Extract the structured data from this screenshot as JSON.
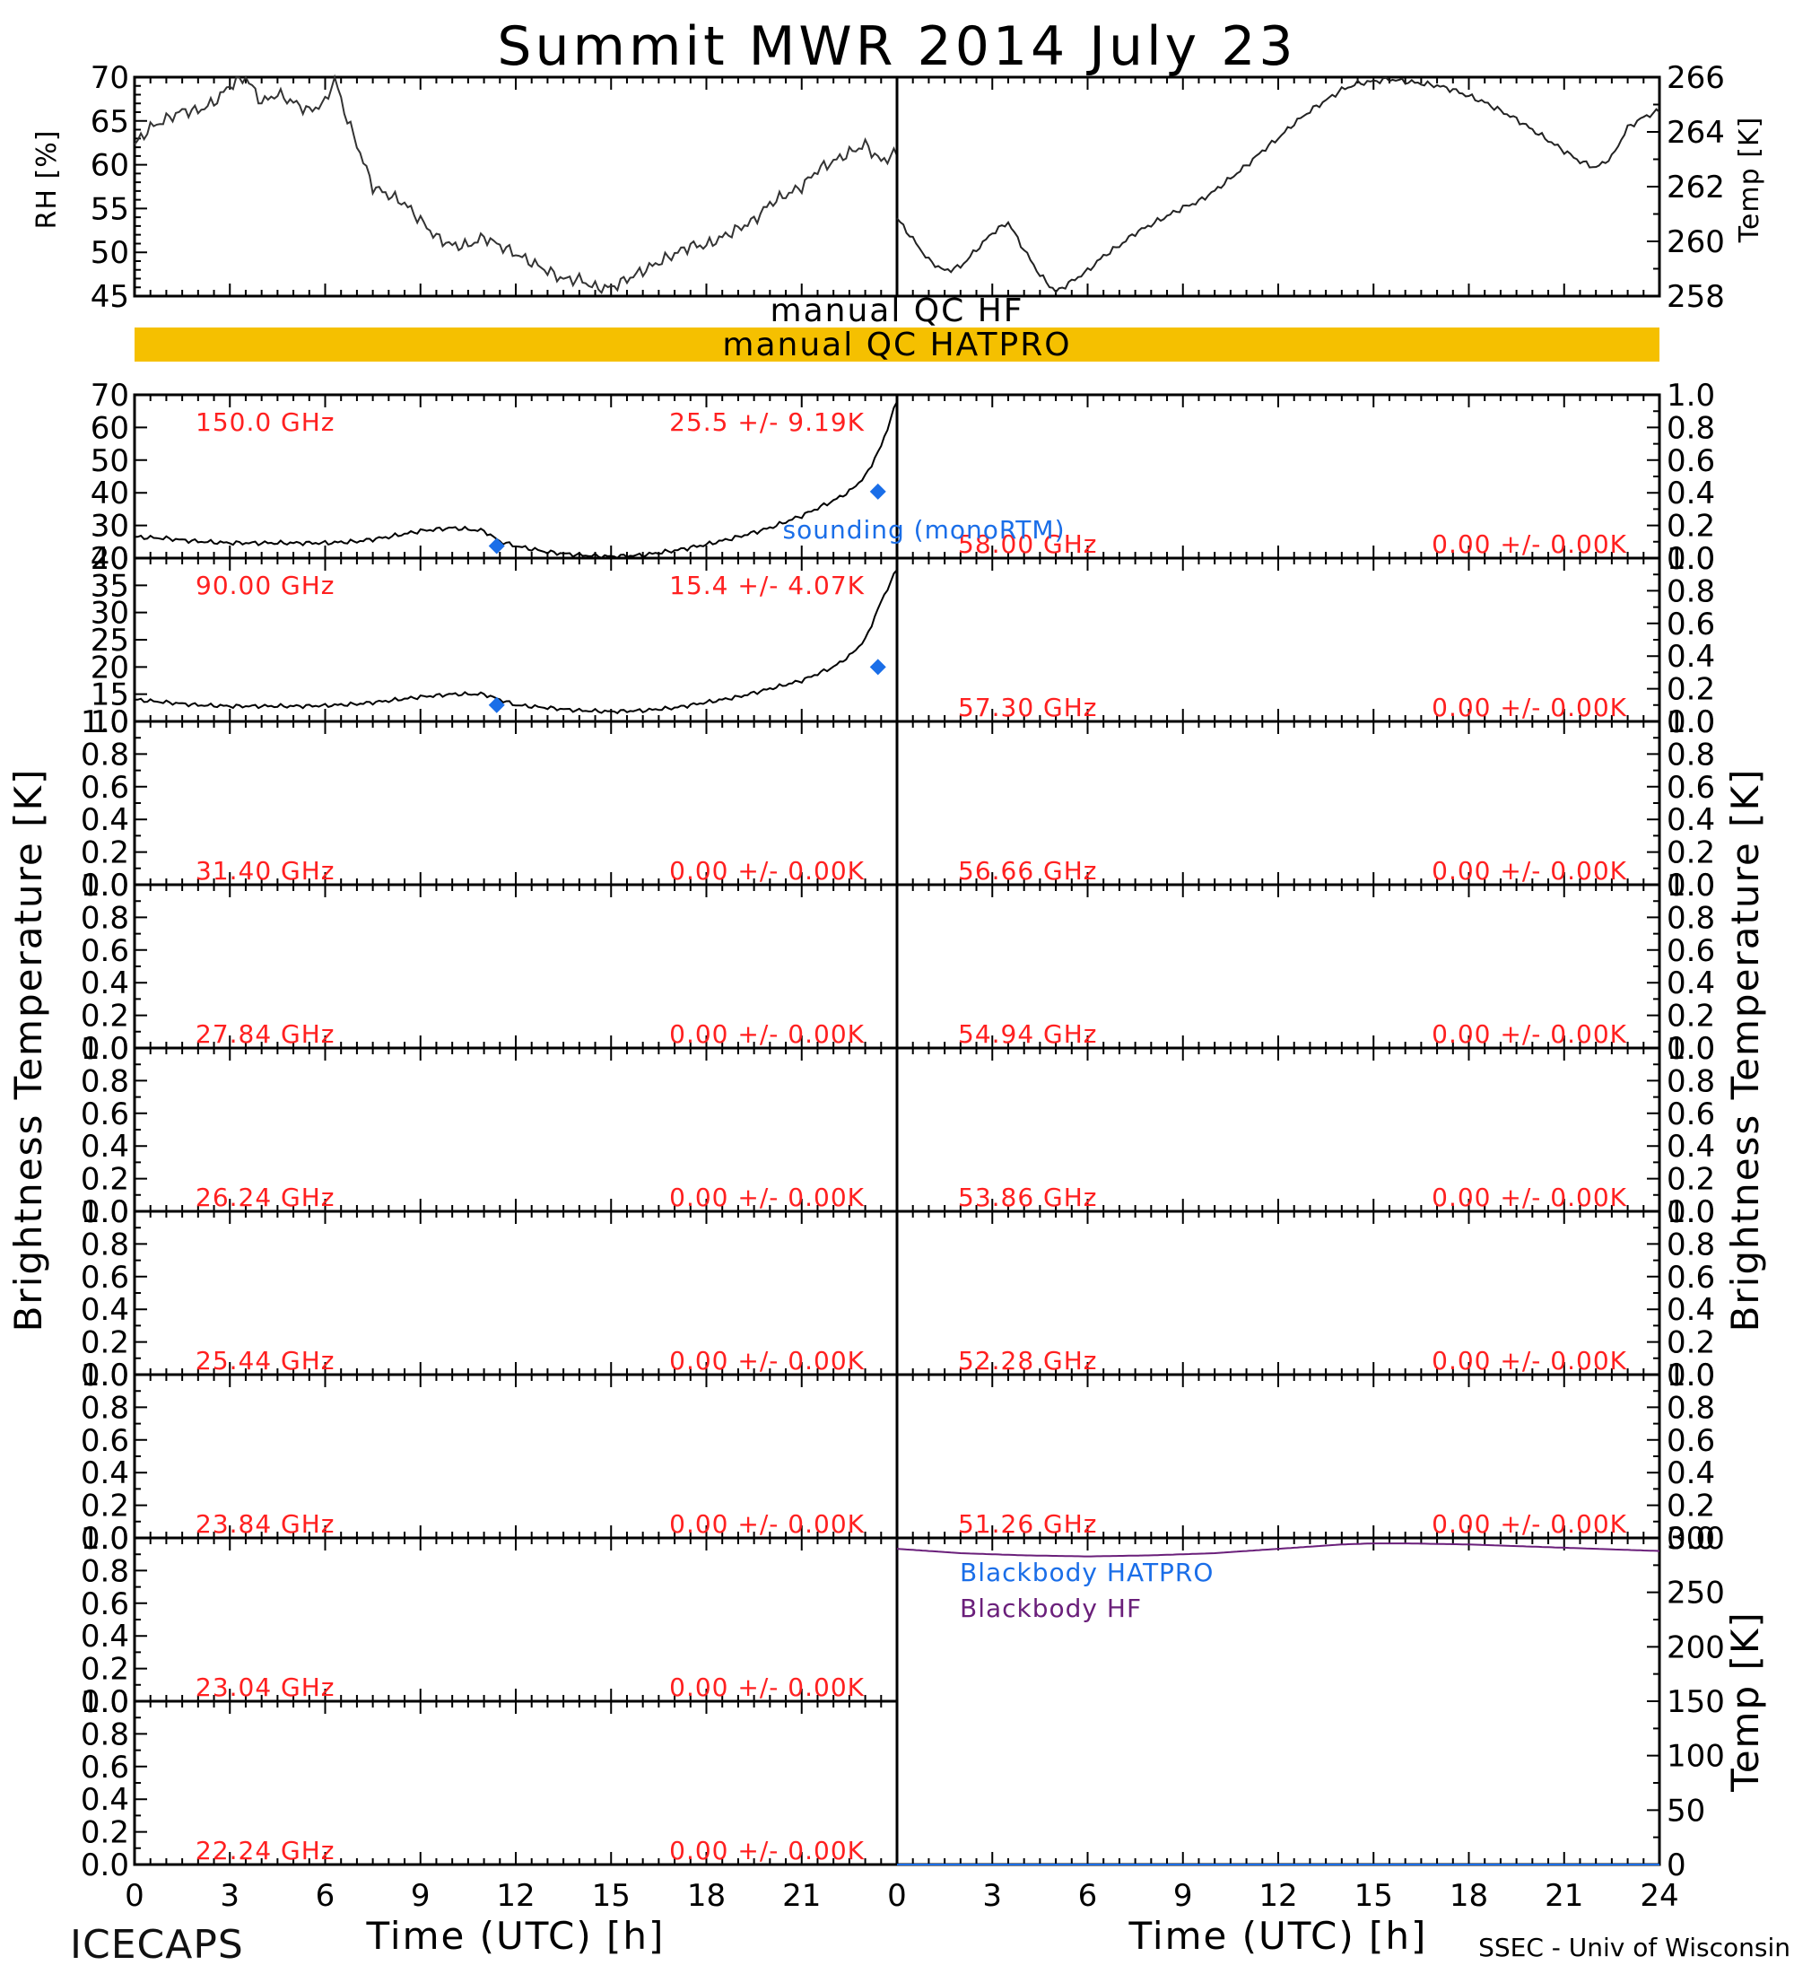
{
  "title": "Summit MWR 2014 July 23",
  "footer": {
    "left": "ICECAPS",
    "right": "SSEC - Univ of Wisconsin"
  },
  "colors": {
    "axes": "#000000",
    "channel_text": "#ff2020",
    "sounding": "#1a6ee8",
    "qc_bar": "#f5c000",
    "blackbody_hatpro": "#1a6ee8",
    "blackbody_hf": "#6a1f7a"
  },
  "qc": {
    "hf_label": "manual  QC  HF",
    "hatpro_label": "manual  QC  HATPRO",
    "hatpro_flagged": true
  },
  "chart_data": [
    {
      "id": "rh",
      "type": "line",
      "ylabel": "RH [%]",
      "xlim": [
        0,
        24
      ],
      "ylim": [
        44,
        70
      ],
      "yticks": [
        "45",
        "50",
        "55",
        "60",
        "65",
        "70"
      ],
      "series": [
        {
          "x": [
            0,
            0.5,
            1,
            1.5,
            2,
            2.5,
            3,
            3.5,
            4,
            4.5,
            5,
            5.5,
            6,
            6.3,
            6.6,
            7,
            7.5,
            8,
            8.5,
            9,
            9.5,
            10,
            10.5,
            11,
            11.5,
            12,
            12.5,
            13,
            13.5,
            14,
            14.5,
            15,
            15.5,
            16,
            16.5,
            17,
            17.5,
            18,
            18.5,
            19,
            19.5,
            20,
            20.5,
            21,
            21.5,
            22,
            22.5,
            23,
            23.5,
            24
          ],
          "y": [
            62,
            64,
            65,
            66,
            66,
            67,
            69,
            70,
            67,
            68,
            67,
            66,
            67,
            70,
            66,
            62,
            57,
            56,
            55,
            53,
            51,
            50,
            50,
            51,
            50,
            49,
            48,
            47,
            46,
            46,
            45,
            45,
            46,
            47,
            48,
            49,
            50,
            50,
            51,
            52,
            53,
            55,
            56,
            57,
            59,
            60,
            61,
            62,
            60,
            61
          ]
        }
      ]
    },
    {
      "id": "temp",
      "type": "line",
      "ylabel": "Temp [K]",
      "xlim": [
        0,
        24
      ],
      "ylim": [
        256.8,
        267.2
      ],
      "yticks": [
        "258",
        "260",
        "262",
        "264",
        "266"
      ],
      "series": [
        {
          "x": [
            0,
            0.5,
            1,
            1.5,
            2,
            2.5,
            3,
            3.5,
            4,
            4.5,
            5,
            5.5,
            6,
            6.5,
            7,
            7.5,
            8,
            8.5,
            9,
            9.5,
            10,
            10.5,
            11,
            11.5,
            12,
            12.5,
            13,
            13.5,
            14,
            14.5,
            15,
            15.5,
            16,
            16.5,
            17,
            17.5,
            18,
            18.5,
            19,
            19.5,
            20,
            20.5,
            21,
            21.5,
            22,
            22.5,
            23,
            23.5,
            24
          ],
          "y": [
            260.5,
            259.5,
            258.5,
            258,
            258.2,
            259,
            259.8,
            260.3,
            259,
            257.8,
            257,
            257.5,
            258,
            258.7,
            259.2,
            259.8,
            260.2,
            260.6,
            261,
            261.3,
            261.8,
            262.4,
            263,
            263.7,
            264.3,
            265,
            265.6,
            266.1,
            266.6,
            266.9,
            267,
            267.1,
            267,
            266.9,
            266.8,
            266.6,
            266.3,
            266,
            265.6,
            265.2,
            264.7,
            264.2,
            263.7,
            263.2,
            262.9,
            263.4,
            264.8,
            265.3,
            265.6
          ]
        }
      ]
    },
    {
      "id": "ch150",
      "type": "line",
      "channel": "150.0 GHz",
      "stats": "25.5 +/-  9.19K",
      "xlim": [
        0,
        24
      ],
      "ylim": [
        18,
        72
      ],
      "yticks": [
        "20",
        "30",
        "40",
        "50",
        "60",
        "70"
      ],
      "series": [
        {
          "x": [
            0,
            1,
            2,
            3,
            4,
            5,
            6,
            7,
            8,
            9,
            10,
            11,
            11.5,
            12,
            13,
            14,
            15,
            16,
            17,
            18,
            19,
            20,
            21,
            22,
            22.5,
            23,
            23.5,
            24
          ],
          "y": [
            25,
            24.5,
            23.5,
            23,
            23,
            23,
            23,
            23.5,
            25,
            27,
            28,
            27,
            23.5,
            22,
            20,
            19,
            18.5,
            19,
            20.5,
            22.5,
            25,
            28,
            32,
            37,
            40,
            45,
            55,
            70
          ]
        },
        {
          "name": "sounding (monoRTM)",
          "type": "scatter",
          "x": [
            11.4,
            23.4
          ],
          "y": [
            22,
            40
          ]
        }
      ]
    },
    {
      "id": "ch90",
      "type": "line",
      "channel": "90.00 GHz",
      "stats": "15.4 +/-  4.07K",
      "xlim": [
        0,
        24
      ],
      "ylim": [
        10,
        40
      ],
      "yticks": [
        "10",
        "15",
        "20",
        "25",
        "30",
        "35",
        "40"
      ],
      "series": [
        {
          "x": [
            0,
            1,
            2,
            3,
            4,
            5,
            6,
            7,
            8,
            9,
            10,
            11,
            11.5,
            12,
            13,
            14,
            15,
            16,
            17,
            18,
            19,
            20,
            21,
            22,
            22.5,
            23,
            23.5,
            24
          ],
          "y": [
            14,
            13.5,
            13,
            12.8,
            12.8,
            12.8,
            12.9,
            13.2,
            13.8,
            14.5,
            15,
            15,
            14,
            13,
            12.5,
            12,
            11.8,
            12,
            12.5,
            13.5,
            14.5,
            16,
            17.5,
            20,
            22,
            25,
            32,
            38
          ]
        },
        {
          "type": "scatter",
          "x": [
            11.4,
            23.4
          ],
          "y": [
            13,
            20
          ]
        }
      ]
    },
    {
      "id": "ch58",
      "type": "line",
      "channel": "58.00 GHz",
      "stats": "0.00 +/-  0.00K",
      "ylim": [
        0,
        1
      ]
    },
    {
      "id": "ch5730",
      "type": "line",
      "channel": "57.30 GHz",
      "stats": "0.00 +/-  0.00K",
      "ylim": [
        0,
        1
      ]
    },
    {
      "id": "ch3140",
      "type": "line",
      "channel": "31.40 GHz",
      "stats": "0.00 +/-  0.00K",
      "ylim": [
        0,
        1
      ]
    },
    {
      "id": "ch5666",
      "type": "line",
      "channel": "56.66 GHz",
      "stats": "0.00 +/-  0.00K",
      "ylim": [
        0,
        1
      ]
    },
    {
      "id": "ch2784",
      "type": "line",
      "channel": "27.84 GHz",
      "stats": "0.00 +/-  0.00K",
      "ylim": [
        0,
        1
      ]
    },
    {
      "id": "ch5494",
      "type": "line",
      "channel": "54.94 GHz",
      "stats": "0.00 +/-  0.00K",
      "ylim": [
        0,
        1
      ]
    },
    {
      "id": "ch2624",
      "type": "line",
      "channel": "26.24 GHz",
      "stats": "0.00 +/-  0.00K",
      "ylim": [
        0,
        1
      ]
    },
    {
      "id": "ch5386",
      "type": "line",
      "channel": "53.86 GHz",
      "stats": "0.00 +/-  0.00K",
      "ylim": [
        0,
        1
      ]
    },
    {
      "id": "ch2544",
      "type": "line",
      "channel": "25.44 GHz",
      "stats": "0.00 +/-  0.00K",
      "ylim": [
        0,
        1
      ]
    },
    {
      "id": "ch5228",
      "type": "line",
      "channel": "52.28 GHz",
      "stats": "0.00 +/-  0.00K",
      "ylim": [
        0,
        1
      ]
    },
    {
      "id": "ch2384",
      "type": "line",
      "channel": "23.84 GHz",
      "stats": "0.00 +/-  0.00K",
      "ylim": [
        0,
        1
      ]
    },
    {
      "id": "ch5126",
      "type": "line",
      "channel": "51.26 GHz",
      "stats": "0.00 +/-  0.00K",
      "ylim": [
        0,
        1
      ]
    },
    {
      "id": "ch2304",
      "type": "line",
      "channel": "23.04 GHz",
      "stats": "0.00 +/-  0.00K",
      "ylim": [
        0,
        1
      ]
    },
    {
      "id": "ch2224",
      "type": "line",
      "channel": "22.24 GHz",
      "stats": "0.00 +/-  0.00K",
      "ylim": [
        0,
        1
      ]
    },
    {
      "id": "blackbody",
      "type": "line",
      "ylabel": "Temp [K]",
      "xlim": [
        0,
        24
      ],
      "ylim": [
        0,
        300
      ],
      "yticks": [
        "0",
        "50",
        "100",
        "150",
        "200",
        "250",
        "300"
      ],
      "series": [
        {
          "name": "Blackbody HATPRO",
          "x": [
            0,
            24
          ],
          "y": [
            0,
            0
          ]
        },
        {
          "name": "Blackbody HF",
          "x": [
            0,
            2,
            4,
            6,
            8,
            10,
            12,
            14,
            15,
            16,
            18,
            20,
            22,
            24
          ],
          "y": [
            290,
            286,
            284,
            283,
            284,
            286,
            290,
            294,
            295,
            295,
            294,
            292,
            290,
            288
          ]
        }
      ]
    }
  ],
  "axes": {
    "brightness_ylabel": "Brightness Temperature [K]",
    "x_ticks": [
      "0",
      "3",
      "6",
      "9",
      "12",
      "15",
      "18",
      "21"
    ],
    "x_ticks_right": [
      "0",
      "3",
      "6",
      "9",
      "12",
      "15",
      "18",
      "21",
      "24"
    ],
    "xlabel": "Time (UTC) [h]",
    "unit_ticks": [
      "0.0",
      "0.2",
      "0.4",
      "0.6",
      "0.8",
      "1.0"
    ]
  }
}
